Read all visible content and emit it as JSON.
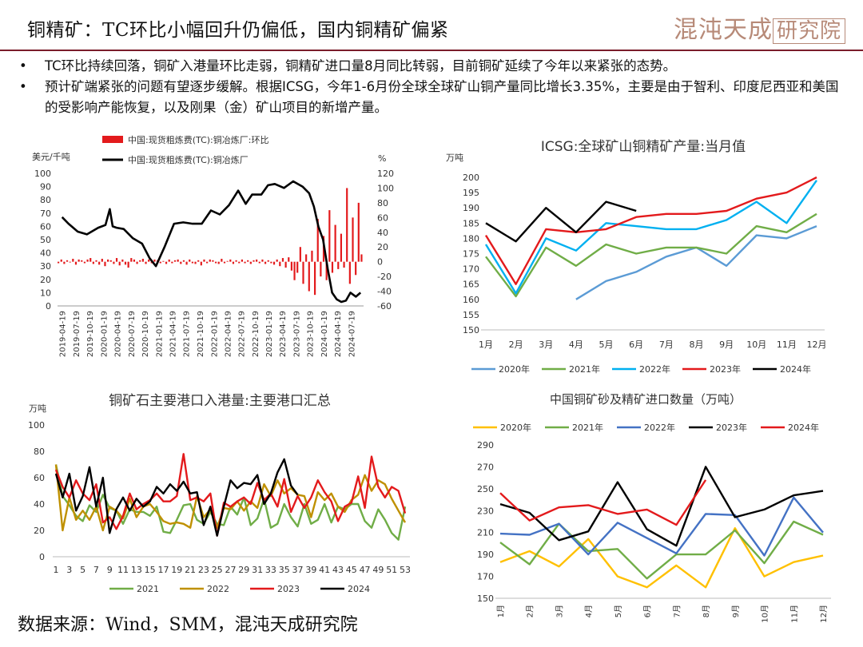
{
  "header": {
    "title": "铜精矿：TC环比小幅回升仍偏低，国内铜精矿偏紧",
    "logo_a": "混沌天成",
    "logo_b": "研究院"
  },
  "bullets": [
    {
      "mark": "•",
      "text": "TC环比持续回落，铜矿入港量环比走弱，铜精矿进口量8月同比转弱，目前铜矿延续了今年以来紧张的态势。"
    },
    {
      "mark": "•",
      "text": "预计矿端紧张的问题有望逐步缓解。根据ICSG，今年1-6月份全球全球矿山铜产量同比增长3.35%，主要是由于智利、印度尼西亚和美国的受影响产能恢复，以及刚果（金）矿山项目的新增产量。"
    }
  ],
  "source": "数据来源：Wind，SMM，混沌天成研究院",
  "colors": {
    "c2020": "#5b9bd5",
    "c2021": "#70ad47",
    "c2022": "#00b0f0",
    "c2023": "#e31a1c",
    "c2024": "#000000",
    "cy2020": "#ffc000",
    "cy2022wk": "#bf9000",
    "cimp2022": "#4472c4",
    "ctcbar": "#e31a1c"
  },
  "chart_data": [
    {
      "id": "tc",
      "type": "bar+line",
      "title": "",
      "ylabel_left": "美元/千吨",
      "ylabel_right": "%",
      "ylim_left": [
        0,
        100
      ],
      "ylim_right": [
        -60,
        120
      ],
      "yticks_left": [
        "0",
        "10",
        "20",
        "30",
        "40",
        "50",
        "60",
        "70",
        "80",
        "90",
        "100"
      ],
      "yticks_right": [
        "-60",
        "-40",
        "-20",
        "0",
        "20",
        "40",
        "60",
        "80",
        "100",
        "120"
      ],
      "x_ticks": [
        "2019-04-19",
        "2019-07-19",
        "2019-10-19",
        "2020-01-19",
        "2020-04-19",
        "2020-07-19",
        "2020-10-19",
        "2021-01-19",
        "2021-04-19",
        "2021-07-19",
        "2021-10-19",
        "2022-01-19",
        "2022-04-19",
        "2022-07-19",
        "2022-10-19",
        "2023-01-19",
        "2023-04-19",
        "2023-07-19",
        "2023-10-19",
        "2024-01-19",
        "2024-04-19",
        "2024-07-19"
      ],
      "legend": [
        "中国:现货粗炼费(TC):铜冶炼厂:环比",
        "中国:现货粗炼费(TC):铜冶炼厂"
      ],
      "line": {
        "x": [
          "2019-04-19",
          "2019-06-01",
          "2019-08-01",
          "2019-10-01",
          "2019-12-15",
          "2020-02-01",
          "2020-03-01",
          "2020-03-20",
          "2020-04-15",
          "2020-06-01",
          "2020-08-01",
          "2020-10-01",
          "2020-11-20",
          "2021-01-01",
          "2021-03-01",
          "2021-05-01",
          "2021-07-01",
          "2021-09-01",
          "2021-11-01",
          "2022-01-01",
          "2022-03-01",
          "2022-05-01",
          "2022-07-01",
          "2022-08-20",
          "2022-10-01",
          "2022-12-01",
          "2023-01-15",
          "2023-03-01",
          "2023-05-01",
          "2023-07-01",
          "2023-09-01",
          "2023-10-15",
          "2023-11-15",
          "2023-12-15",
          "2024-01-15",
          "2024-02-15",
          "2024-03-15",
          "2024-04-15",
          "2024-05-15",
          "2024-06-15",
          "2024-07-15",
          "2024-08-20",
          "2024-09-20"
        ],
        "y": [
          67,
          62,
          56,
          54,
          59,
          61,
          73,
          60,
          59,
          58,
          51,
          47,
          36,
          30,
          45,
          62,
          63,
          62,
          62,
          72,
          69,
          76,
          87,
          77,
          84,
          84,
          91,
          92,
          89,
          94,
          90,
          85,
          75,
          60,
          50,
          28,
          10,
          5,
          3,
          4,
          10,
          7,
          10
        ]
      },
      "bars": {
        "values": [
          -2,
          3,
          -3,
          2,
          -1,
          4,
          -4,
          3,
          2,
          -2,
          3,
          5,
          -3,
          2,
          -4,
          4,
          -6,
          3,
          2,
          -3,
          5,
          -5,
          3,
          -4,
          -8,
          5,
          3,
          -3,
          2,
          4,
          -3,
          3,
          -2,
          3,
          2,
          -2,
          1,
          -3,
          3,
          -2,
          2,
          3,
          -3,
          2,
          -4,
          3,
          -2,
          -3,
          2,
          -5,
          3,
          -2,
          3,
          2,
          -2,
          -3,
          4,
          -2,
          1,
          3,
          -3,
          2,
          -2,
          3,
          -2,
          2,
          -3,
          2,
          3,
          -2,
          3,
          -3,
          2,
          -2,
          -4,
          3,
          -6,
          5,
          -8,
          6,
          -12,
          -25,
          -15,
          20,
          -30,
          10,
          -40,
          15,
          -45,
          58,
          -20,
          35,
          -25,
          70,
          -15,
          50,
          -10,
          38,
          -8,
          100,
          -30,
          60,
          -18,
          80,
          10
        ]
      }
    },
    {
      "id": "icsg",
      "type": "line",
      "title": "ICSG:全球矿山铜精矿产量:当月值",
      "ylabel": "万吨",
      "ylim": [
        150,
        200
      ],
      "yticks": [
        "150",
        "155",
        "160",
        "165",
        "170",
        "175",
        "180",
        "185",
        "190",
        "195",
        "200"
      ],
      "categories": [
        "1月",
        "2月",
        "3月",
        "4月",
        "5月",
        "6月",
        "7月",
        "8月",
        "9月",
        "10月",
        "11月",
        "12月"
      ],
      "series": [
        {
          "name": "2020年",
          "values": [
            null,
            null,
            null,
            160,
            166,
            169,
            174,
            177,
            171,
            181,
            180,
            184
          ]
        },
        {
          "name": "2021年",
          "values": [
            174,
            161,
            177,
            171,
            178,
            175,
            177,
            177,
            175,
            184,
            182,
            188
          ]
        },
        {
          "name": "2022年",
          "values": [
            178,
            162,
            180,
            176,
            185,
            184,
            183,
            183,
            186,
            192,
            185,
            199
          ]
        },
        {
          "name": "2023年",
          "values": [
            181,
            165,
            183,
            182,
            183,
            187,
            188,
            188,
            189,
            193,
            195,
            200
          ]
        },
        {
          "name": "2024年",
          "values": [
            185,
            179,
            190,
            182,
            192,
            189,
            null,
            null,
            null,
            null,
            null,
            null
          ]
        }
      ]
    },
    {
      "id": "port",
      "type": "line",
      "title": "铜矿石主要港口入港量:主要港口汇总",
      "ylabel": "万吨",
      "ylim": [
        0,
        100
      ],
      "yticks": [
        "0",
        "20",
        "40",
        "60",
        "80",
        "100"
      ],
      "x_ticks": [
        "1",
        "3",
        "5",
        "7",
        "9",
        "11",
        "13",
        "15",
        "17",
        "19",
        "21",
        "23",
        "25",
        "27",
        "29",
        "31",
        "33",
        "35",
        "37",
        "39",
        "41",
        "43",
        "45",
        "47",
        "49",
        "51",
        "53"
      ],
      "series": [
        {
          "name": "2021",
          "values": [
            70,
            46,
            39,
            31,
            27,
            39,
            34,
            47,
            37,
            35,
            25,
            36,
            34,
            34,
            31,
            38,
            19,
            18,
            28,
            39,
            40,
            28,
            25,
            34,
            25,
            24,
            38,
            32,
            45,
            24,
            29,
            44,
            22,
            25,
            40,
            30,
            23,
            40,
            25,
            28,
            40,
            26,
            38,
            36,
            40,
            40,
            27,
            22,
            36,
            28,
            18,
            13,
            38
          ]
        },
        {
          "name": "2022",
          "values": [
            70,
            20,
            45,
            28,
            35,
            28,
            38,
            20,
            38,
            35,
            29,
            44,
            30,
            38,
            40,
            34,
            27,
            25,
            26,
            25,
            22,
            46,
            30,
            36,
            22,
            37,
            36,
            42,
            35,
            42,
            37,
            55,
            46,
            58,
            48,
            52,
            47,
            46,
            30,
            49,
            43,
            48,
            38,
            34,
            43,
            47,
            62,
            50,
            58,
            55,
            44,
            35,
            26
          ]
        },
        {
          "name": "2023",
          "values": [
            66,
            53,
            45,
            58,
            48,
            43,
            55,
            26,
            30,
            21,
            31,
            48,
            36,
            40,
            43,
            48,
            42,
            42,
            46,
            78,
            43,
            45,
            42,
            48,
            16,
            41,
            38,
            42,
            45,
            40,
            56,
            43,
            48,
            38,
            59,
            34,
            46,
            37,
            45,
            58,
            49,
            42,
            27,
            38,
            41,
            61,
            37,
            76,
            53,
            45,
            53,
            50,
            33
          ]
        },
        {
          "name": "2024",
          "values": [
            63,
            45,
            63,
            35,
            46,
            68,
            38,
            60,
            18,
            36,
            45,
            35,
            44,
            38,
            42,
            53,
            48,
            55,
            50,
            57,
            48,
            49,
            24,
            38,
            16,
            38,
            58,
            52,
            56,
            55,
            62,
            40,
            48,
            64,
            74,
            54,
            47
          ]
        }
      ]
    },
    {
      "id": "import",
      "type": "line",
      "title": "中国铜矿砂及精矿进口数量（万吨）",
      "ylim": [
        150,
        290
      ],
      "yticks": [
        "150",
        "170",
        "190",
        "210",
        "230",
        "250",
        "270",
        "290"
      ],
      "categories": [
        "1月",
        "2月",
        "3月",
        "4月",
        "5月",
        "6月",
        "7月",
        "8月",
        "9月",
        "10月",
        "11月",
        "12月"
      ],
      "series": [
        {
          "name": "2020年",
          "values": [
            183,
            193,
            179,
            204,
            170,
            160,
            180,
            160,
            214,
            170,
            183,
            189
          ]
        },
        {
          "name": "2021年",
          "values": [
            201,
            181,
            218,
            193,
            195,
            168,
            190,
            190,
            212,
            182,
            220,
            208
          ]
        },
        {
          "name": "2022年",
          "values": [
            209,
            208,
            218,
            190,
            219,
            205,
            191,
            227,
            226,
            189,
            242,
            210
          ]
        },
        {
          "name": "2023年",
          "values": [
            236,
            228,
            203,
            211,
            256,
            213,
            198,
            270,
            224,
            231,
            244,
            248
          ]
        },
        {
          "name": "2024年",
          "values": [
            246,
            221,
            233,
            235,
            227,
            231,
            217,
            258,
            null,
            null,
            null,
            null
          ]
        }
      ]
    }
  ]
}
